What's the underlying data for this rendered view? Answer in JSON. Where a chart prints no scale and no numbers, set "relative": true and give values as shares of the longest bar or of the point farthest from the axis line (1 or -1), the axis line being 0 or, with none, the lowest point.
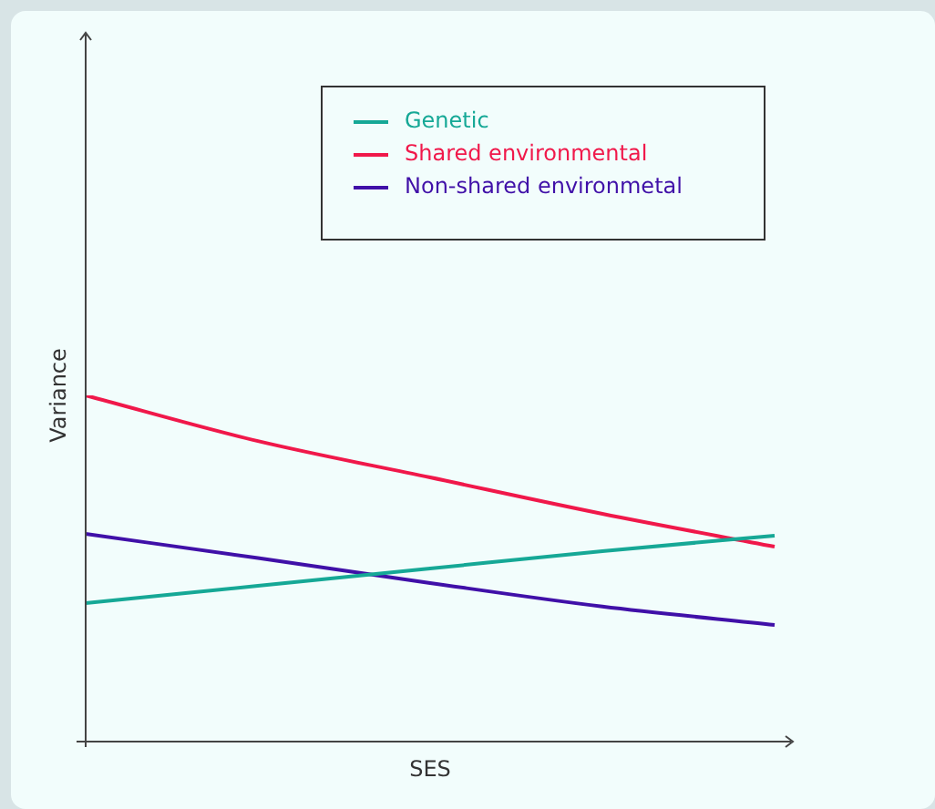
{
  "chart_data": {
    "type": "line",
    "relative": true,
    "xlabel": "SES",
    "ylabel": "Variance",
    "categories": [
      null,
      null,
      null,
      null,
      null
    ],
    "legend": "top right",
    "series": [
      {
        "name": "Genetic",
        "color": "#16a896",
        "values": [
          0.4,
          0.45,
          0.5,
          0.55,
          0.595
        ]
      },
      {
        "name": "Shared environmental",
        "color": "#f0184a",
        "values": [
          1,
          0.868,
          0.763,
          0.658,
          0.563
        ]
      },
      {
        "name": "Non-shared environmetal",
        "color": "#4010a8",
        "values": [
          0.6,
          0.53,
          0.458,
          0.39,
          0.337
        ]
      }
    ]
  }
}
